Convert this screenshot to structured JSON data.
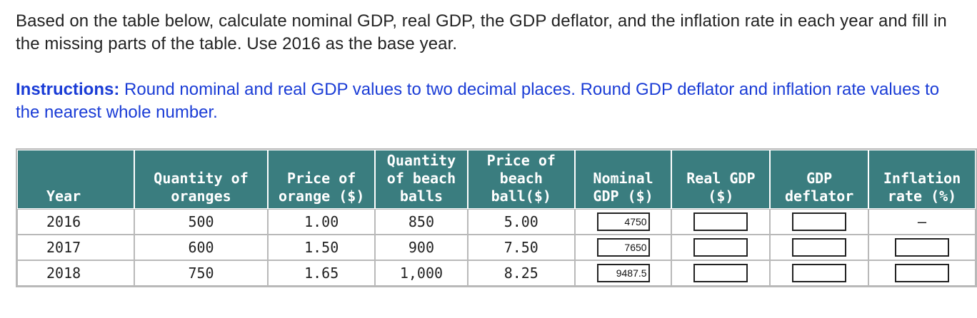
{
  "question": "Based on the table below, calculate nominal GDP, real GDP, the GDP deflator, and the inflation rate in each year and fill in the missing parts of the table. Use 2016 as the base year.",
  "instructions": {
    "label": "Instructions:",
    "text": "Round nominal and real GDP values to two decimal places. Round GDP deflator and inflation rate values to the nearest whole number."
  },
  "table": {
    "headers": {
      "year": "Year",
      "qty_oranges": [
        "Quantity of",
        "oranges"
      ],
      "price_orange": [
        "Price of",
        "orange ($)"
      ],
      "qty_beach": [
        "Quantity",
        "of beach",
        "balls"
      ],
      "price_beach": [
        "Price of",
        "beach",
        "ball($)"
      ],
      "nominal": [
        "Nominal",
        "GDP ($)"
      ],
      "real": [
        "Real GDP",
        "($)"
      ],
      "deflator": [
        "GDP",
        "deflator"
      ],
      "inflation": [
        "Inflation",
        "rate (%)"
      ]
    },
    "rows": [
      {
        "year": "2016",
        "qty_oranges": "500",
        "price_orange": "1.00",
        "qty_beach": "850",
        "price_beach": "5.00",
        "nominal": "4750",
        "real": "",
        "deflator": "",
        "inflation": "–"
      },
      {
        "year": "2017",
        "qty_oranges": "600",
        "price_orange": "1.50",
        "qty_beach": "900",
        "price_beach": "7.50",
        "nominal": "7650",
        "real": "",
        "deflator": "",
        "inflation": ""
      },
      {
        "year": "2018",
        "qty_oranges": "750",
        "price_orange": "1.65",
        "qty_beach": "1,000",
        "price_beach": "8.25",
        "nominal": "9487.5",
        "real": "",
        "deflator": "",
        "inflation": ""
      }
    ]
  }
}
